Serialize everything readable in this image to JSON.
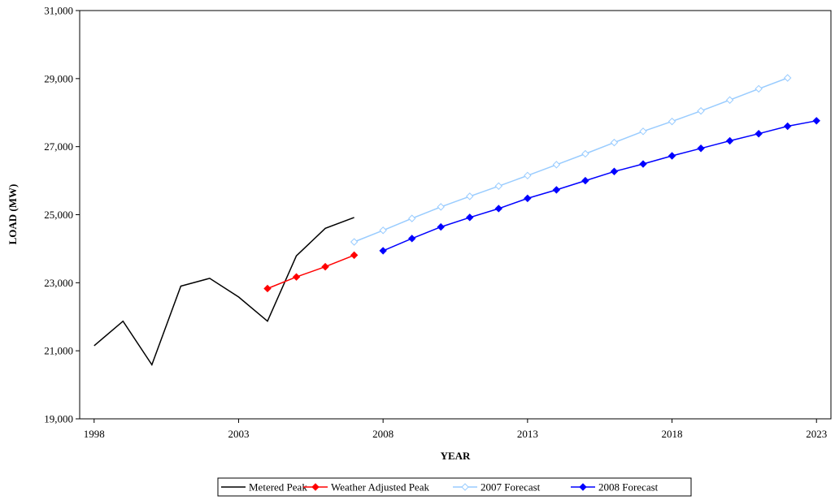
{
  "chart_data": {
    "type": "line",
    "title": "",
    "xlabel": "YEAR",
    "ylabel": "LOAD (MW)",
    "xlim": [
      1997.5,
      2023.5
    ],
    "ylim": [
      19000,
      31000
    ],
    "x_ticks": [
      1998,
      2003,
      2008,
      2013,
      2018,
      2023
    ],
    "x_tick_labels": [
      "1998",
      "2003",
      "2008",
      "2013",
      "2018",
      "2023"
    ],
    "y_ticks": [
      19000,
      21000,
      23000,
      25000,
      27000,
      29000,
      31000
    ],
    "y_tick_labels": [
      "19,000",
      "21,000",
      "23,000",
      "25,000",
      "27,000",
      "29,000",
      "31,000"
    ],
    "grid": false,
    "legend_position": "bottom",
    "series": [
      {
        "name": "Metered Peak",
        "color": "#000000",
        "marker": "none",
        "x": [
          1998,
          1999,
          2000,
          2001,
          2002,
          2003,
          2004,
          2005,
          2006,
          2007
        ],
        "y": [
          21150,
          21870,
          20590,
          22900,
          23130,
          22580,
          21870,
          23790,
          24600,
          24920
        ]
      },
      {
        "name": "Weather Adjusted Peak",
        "color": "#ff0000",
        "marker": "filled-diamond",
        "x": [
          2004,
          2005,
          2006,
          2007
        ],
        "y": [
          22830,
          23170,
          23470,
          23810
        ]
      },
      {
        "name": "2007 Forecast",
        "color": "#99ccff",
        "marker": "open-diamond",
        "x": [
          2007,
          2008,
          2009,
          2010,
          2011,
          2012,
          2013,
          2014,
          2015,
          2016,
          2017,
          2018,
          2019,
          2020,
          2021,
          2022
        ],
        "y": [
          24200,
          24540,
          24890,
          25230,
          25540,
          25840,
          26150,
          26470,
          26790,
          27120,
          27450,
          27740,
          28050,
          28370,
          28700,
          29020
        ]
      },
      {
        "name": "2008 Forecast",
        "color": "#0000ff",
        "marker": "filled-diamond",
        "x": [
          2008,
          2009,
          2010,
          2011,
          2012,
          2013,
          2014,
          2015,
          2016,
          2017,
          2018,
          2019,
          2020,
          2021,
          2022,
          2023
        ],
        "y": [
          23940,
          24300,
          24640,
          24920,
          25180,
          25480,
          25730,
          26000,
          26270,
          26490,
          26730,
          26950,
          27170,
          27380,
          27600,
          27760
        ]
      }
    ]
  }
}
